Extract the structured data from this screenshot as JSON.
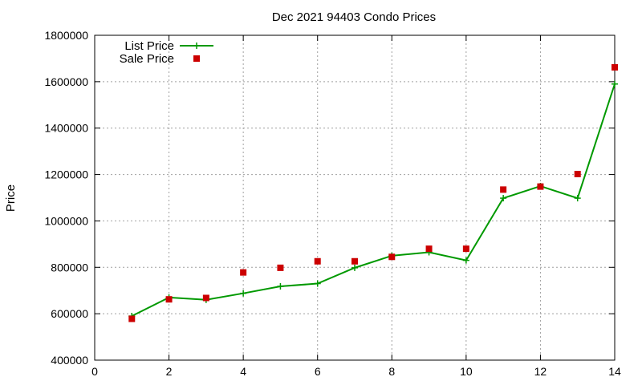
{
  "chart_data": {
    "type": "line",
    "title": "Dec 2021 94403 Condo Prices",
    "xlabel": "",
    "ylabel": "Price",
    "xlim": [
      0,
      14
    ],
    "ylim": [
      400000,
      1800000
    ],
    "xticks": [
      0,
      2,
      4,
      6,
      8,
      10,
      12,
      14
    ],
    "yticks": [
      400000,
      600000,
      800000,
      1000000,
      1200000,
      1400000,
      1600000,
      1800000
    ],
    "grid": true,
    "legend_position": "top-left",
    "series": [
      {
        "name": "List Price",
        "color": "#009900",
        "style": "line+cross",
        "x": [
          1,
          2,
          3,
          4,
          5,
          6,
          7,
          8,
          9,
          10,
          11,
          12,
          13,
          14
        ],
        "values": [
          590000,
          670000,
          660000,
          688000,
          718000,
          730000,
          798000,
          850000,
          865000,
          830000,
          1098000,
          1150000,
          1098000,
          1590000
        ]
      },
      {
        "name": "Sale Price",
        "color": "#cc0000",
        "style": "square",
        "x": [
          1,
          2,
          3,
          4,
          5,
          6,
          7,
          8,
          9,
          10,
          11,
          12,
          13,
          14
        ],
        "values": [
          578000,
          662000,
          668000,
          778000,
          798000,
          826000,
          826000,
          845000,
          880000,
          880000,
          1135000,
          1148000,
          1202000,
          1662000
        ]
      }
    ]
  }
}
